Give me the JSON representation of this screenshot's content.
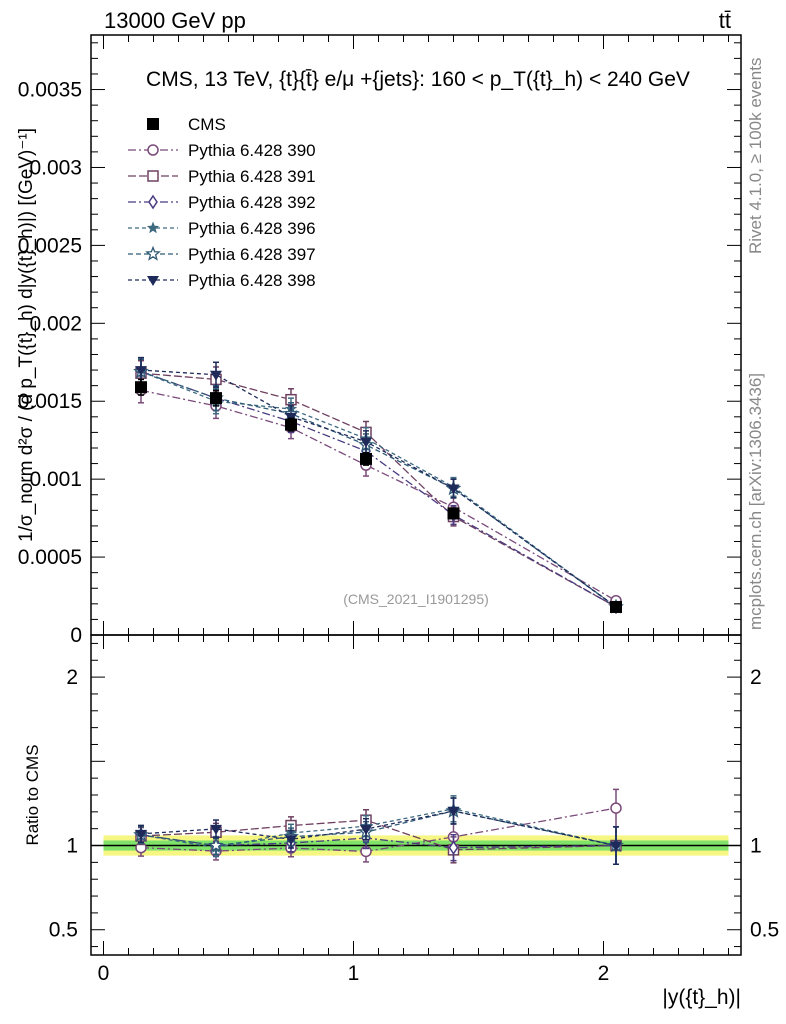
{
  "header": {
    "left": "13000 GeV pp",
    "right": "tt̄"
  },
  "side_labels": {
    "rivet": "Rivet 4.1.0, ≥ 100k events",
    "mcplots": "mcplots.cern.ch [arXiv:1306.3436]"
  },
  "colors": {
    "cms": "#000000",
    "band_green": "#7fe36a",
    "band_yellow": "#f6f682",
    "ref_line": "#000000"
  },
  "chart_data": {
    "type": "line",
    "title": "CMS, 13 TeV, {t}{t̄} e/μ +{jets}: 160 <  p_T({t}_h) < 240 GeV",
    "watermark": "(CMS_2021_I1901295)",
    "xlabel": "|y({t}_h)|",
    "ylabel": "1/σ_norm d²σ / (d p_T({t}_h) d|y({t}_h)|) [(GeV)⁻¹]",
    "ratio_ylabel": "Ratio to CMS",
    "xlim": [
      -0.05,
      2.55
    ],
    "ylim": [
      0,
      0.00385
    ],
    "ratio_ylim": [
      0.35,
      2.25
    ],
    "x_ticks": [
      {
        "v": 0,
        "label": "0"
      },
      {
        "v": 1,
        "label": "1"
      },
      {
        "v": 2,
        "label": "2"
      }
    ],
    "y_ticks": [
      {
        "v": 0,
        "label": "0"
      },
      {
        "v": 0.0005,
        "label": "0.0005"
      },
      {
        "v": 0.001,
        "label": "0.001"
      },
      {
        "v": 0.0015,
        "label": "0.0015"
      },
      {
        "v": 0.002,
        "label": "0.002"
      },
      {
        "v": 0.0025,
        "label": "0.0025"
      },
      {
        "v": 0.003,
        "label": "0.003"
      },
      {
        "v": 0.0035,
        "label": "0.0035"
      }
    ],
    "ratio_ticks": [
      {
        "v": 0.5,
        "label": "0.5"
      },
      {
        "v": 1,
        "label": "1"
      },
      {
        "v": 2,
        "label": "2"
      }
    ],
    "x": [
      0.15,
      0.45,
      0.75,
      1.05,
      1.4,
      2.05
    ],
    "cms": {
      "name": "CMS",
      "values": [
        0.00159,
        0.00152,
        0.00135,
        0.00113,
        0.00078,
        0.00018
      ],
      "errors": [
        5e-05,
        5e-05,
        4e-05,
        4e-05,
        3e-05,
        1e-05
      ],
      "ratio_band": [
        0.03,
        0.03,
        0.03,
        0.03,
        0.04,
        0.06
      ]
    },
    "series": [
      {
        "name": "Pythia 6.428 390",
        "color": "#7a4a7a",
        "marker": "circle-open",
        "dash": "8,3,2,3",
        "values": [
          0.00157,
          0.00147,
          0.00133,
          0.00109,
          0.00082,
          0.00022
        ],
        "errors": [
          8e-05,
          8e-05,
          7e-05,
          7e-05,
          6e-05,
          2e-05
        ]
      },
      {
        "name": "Pythia 6.428 391",
        "color": "#6e4060",
        "marker": "square-open",
        "dash": "8,3",
        "values": [
          0.00168,
          0.00164,
          0.00151,
          0.0013,
          0.00076,
          0.00018
        ],
        "errors": [
          8e-05,
          8e-05,
          7e-05,
          7e-05,
          6e-05,
          2e-05
        ]
      },
      {
        "name": "Pythia 6.428 392",
        "color": "#4a3a80",
        "marker": "diamond-open",
        "dash": "8,3,2,3",
        "values": [
          0.00169,
          0.00152,
          0.00137,
          0.00118,
          0.00077,
          0.00018
        ],
        "errors": [
          8e-05,
          8e-05,
          7e-05,
          7e-05,
          6e-05,
          2e-05
        ]
      },
      {
        "name": "Pythia 6.428 396",
        "color": "#3e6a80",
        "marker": "star-filled",
        "dash": "4,3",
        "values": [
          0.00169,
          0.0015,
          0.00145,
          0.00126,
          0.00095,
          0.00018
        ],
        "errors": [
          8e-05,
          8e-05,
          7e-05,
          7e-05,
          6e-05,
          2e-05
        ]
      },
      {
        "name": "Pythia 6.428 397",
        "color": "#2e5a76",
        "marker": "star-open",
        "dash": "5,3",
        "values": [
          0.00169,
          0.00152,
          0.00142,
          0.00122,
          0.00094,
          0.00018
        ],
        "errors": [
          8e-05,
          8e-05,
          7e-05,
          7e-05,
          6e-05,
          2e-05
        ]
      },
      {
        "name": "Pythia 6.428 398",
        "color": "#1e2a5a",
        "marker": "triangle-down-filled",
        "dash": "4,3",
        "values": [
          0.0017,
          0.00167,
          0.0014,
          0.00124,
          0.00094,
          0.00018
        ],
        "errors": [
          8e-05,
          8e-05,
          7e-05,
          7e-05,
          6e-05,
          2e-05
        ]
      }
    ]
  }
}
